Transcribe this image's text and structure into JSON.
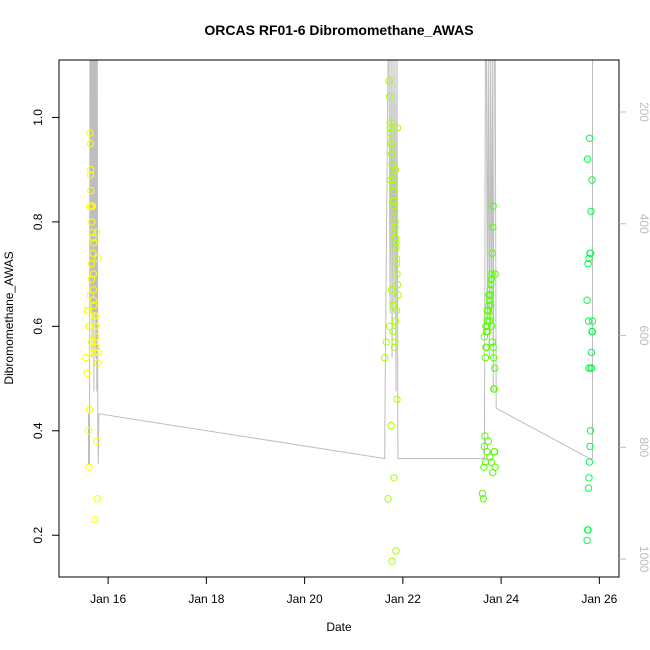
{
  "chart_data": {
    "type": "scatter",
    "title": "ORCAS RF01-6 Dibromomethane_AWAS",
    "xlabel": "Date",
    "ylabel": "Dibromomethane_AWAS",
    "x_ticks": [
      "Jan 16",
      "Jan 18",
      "Jan 20",
      "Jan 22",
      "Jan 24",
      "Jan 26"
    ],
    "x_tick_values": [
      16,
      18,
      20,
      22,
      24,
      26
    ],
    "xlim": [
      15.0,
      26.4
    ],
    "y_ticks": [
      "0.2",
      "0.4",
      "0.6",
      "0.8",
      "1.0"
    ],
    "y_tick_values": [
      0.2,
      0.4,
      0.6,
      0.8,
      1.0
    ],
    "ylim": [
      0.12,
      1.11
    ],
    "y2_ticks": [
      "200",
      "400",
      "600",
      "800",
      "1000"
    ],
    "y2_tick_values": [
      200,
      400,
      600,
      800,
      1000
    ],
    "y2lim": [
      1032,
      107
    ],
    "marker": "open circle",
    "colors": {
      "flight1": "#ffff00",
      "flight2": "#aaff00",
      "flight3": "#55ff00",
      "flight4": "#00ff44",
      "pressure_line": "#bebebe"
    },
    "series": [
      {
        "color_key": "flight1",
        "x": [
          15.55,
          15.57,
          15.6,
          15.61,
          15.62,
          15.63,
          15.64,
          15.65,
          15.65,
          15.66,
          15.67,
          15.67,
          15.68,
          15.69,
          15.7,
          15.7,
          15.71,
          15.72,
          15.73,
          15.74,
          15.75,
          15.76,
          15.58,
          15.62,
          15.68,
          15.73,
          15.79,
          15.64,
          15.66,
          15.7,
          15.74,
          15.63,
          15.67,
          15.71,
          15.61,
          15.66,
          15.72,
          15.77,
          15.69,
          15.75,
          15.78,
          15.73,
          15.79,
          15.6,
          15.64,
          15.68,
          15.77,
          15.8,
          15.66
        ],
        "y": [
          0.54,
          0.51,
          0.4,
          0.33,
          0.44,
          0.97,
          0.95,
          0.9,
          0.86,
          0.83,
          0.83,
          0.8,
          0.78,
          0.74,
          0.7,
          0.67,
          0.64,
          0.62,
          0.6,
          0.6,
          0.58,
          0.56,
          0.63,
          0.6,
          0.55,
          0.55,
          0.53,
          0.66,
          0.69,
          0.65,
          0.62,
          0.83,
          0.83,
          0.76,
          0.6,
          0.57,
          0.57,
          0.38,
          0.77,
          0.6,
          0.27,
          0.23,
          0.73,
          0.63,
          0.89,
          0.83,
          0.78,
          0.55,
          0.72
        ]
      },
      {
        "color_key": "flight2",
        "x": [
          21.63,
          21.66,
          21.7,
          21.72,
          21.73,
          21.74,
          21.75,
          21.76,
          21.77,
          21.78,
          21.79,
          21.8,
          21.81,
          21.82,
          21.83,
          21.84,
          21.85,
          21.86,
          21.87,
          21.88,
          21.89,
          21.9,
          21.74,
          21.76,
          21.78,
          21.8,
          21.82,
          21.84,
          21.86,
          21.75,
          21.79,
          21.83,
          21.87,
          21.77,
          21.81,
          21.85,
          21.73,
          21.8,
          21.84,
          21.88,
          21.76,
          21.82,
          21.86,
          21.78,
          21.83,
          21.87,
          21.85,
          21.89
        ],
        "y": [
          0.54,
          0.57,
          0.27,
          1.07,
          1.04,
          0.99,
          0.97,
          0.95,
          0.93,
          0.91,
          0.89,
          0.88,
          0.86,
          0.84,
          0.82,
          0.79,
          0.77,
          0.75,
          0.72,
          0.7,
          0.68,
          0.66,
          0.98,
          0.95,
          0.91,
          0.87,
          0.83,
          0.8,
          0.76,
          0.88,
          0.84,
          0.78,
          0.73,
          0.67,
          0.64,
          0.61,
          0.6,
          0.59,
          0.57,
          0.46,
          0.41,
          0.31,
          0.17,
          0.15,
          0.56,
          0.63,
          0.9,
          0.98
        ]
      },
      {
        "color_key": "flight3",
        "x": [
          23.62,
          23.64,
          23.65,
          23.66,
          23.67,
          23.68,
          23.69,
          23.7,
          23.71,
          23.72,
          23.73,
          23.74,
          23.75,
          23.76,
          23.77,
          23.78,
          23.79,
          23.8,
          23.81,
          23.82,
          23.83,
          23.84,
          23.85,
          23.86,
          23.87,
          23.88,
          23.66,
          23.69,
          23.72,
          23.75,
          23.78,
          23.81,
          23.84,
          23.87,
          23.68,
          23.71,
          23.74,
          23.77,
          23.8,
          23.83,
          23.86,
          23.7,
          23.73,
          23.76,
          23.79,
          23.82,
          23.85,
          23.88
        ],
        "y": [
          0.28,
          0.27,
          0.33,
          0.37,
          0.39,
          0.54,
          0.56,
          0.59,
          0.6,
          0.61,
          0.62,
          0.63,
          0.64,
          0.65,
          0.66,
          0.67,
          0.68,
          0.69,
          0.7,
          0.74,
          0.79,
          0.83,
          0.48,
          0.48,
          0.36,
          0.33,
          0.58,
          0.6,
          0.63,
          0.66,
          0.62,
          0.6,
          0.56,
          0.52,
          0.34,
          0.36,
          0.38,
          0.35,
          0.34,
          0.32,
          0.36,
          0.56,
          0.59,
          0.61,
          0.64,
          0.57,
          0.54,
          0.7
        ]
      },
      {
        "color_key": "flight4",
        "x": [
          25.75,
          25.76,
          25.77,
          25.78,
          25.79,
          25.8,
          25.81,
          25.82,
          25.83,
          25.84,
          25.85,
          25.86,
          25.75,
          25.77,
          25.79,
          25.81,
          25.83,
          25.85,
          25.76,
          25.8,
          25.84,
          25.78,
          25.82,
          25.86,
          25.79
        ],
        "y": [
          0.19,
          0.21,
          0.21,
          0.29,
          0.31,
          0.34,
          0.37,
          0.4,
          0.52,
          0.52,
          0.59,
          0.61,
          0.65,
          0.72,
          0.73,
          0.74,
          0.82,
          0.88,
          0.92,
          0.96,
          0.55,
          0.61,
          0.74,
          0.59,
          0.52
        ]
      }
    ],
    "pressure_line": {
      "x": [
        15.6,
        15.6,
        15.62,
        15.63,
        15.64,
        15.65,
        15.66,
        15.67,
        15.68,
        15.69,
        15.7,
        15.71,
        15.72,
        15.73,
        15.74,
        15.75,
        15.76,
        15.77,
        15.78,
        15.79,
        15.8,
        15.81,
        21.63,
        21.64,
        21.7,
        21.72,
        21.74,
        21.76,
        21.78,
        21.8,
        21.82,
        21.84,
        21.86,
        21.88,
        21.9,
        23.66,
        23.66,
        23.68,
        23.7,
        23.72,
        23.74,
        23.76,
        23.78,
        23.8,
        23.82,
        23.84,
        23.86,
        23.88,
        23.9,
        25.8,
        25.86,
        25.86,
        25.9
      ],
      "y": [
        830,
        740,
        830,
        100,
        100,
        560,
        100,
        640,
        100,
        560,
        100,
        700,
        100,
        560,
        100,
        640,
        100,
        700,
        100,
        770,
        830,
        740,
        820,
        680,
        100,
        100,
        560,
        100,
        640,
        100,
        560,
        100,
        700,
        100,
        820,
        820,
        820,
        100,
        100,
        560,
        100,
        640,
        100,
        560,
        100,
        700,
        100,
        100,
        730,
        820,
        820,
        100,
        100
      ]
    }
  }
}
